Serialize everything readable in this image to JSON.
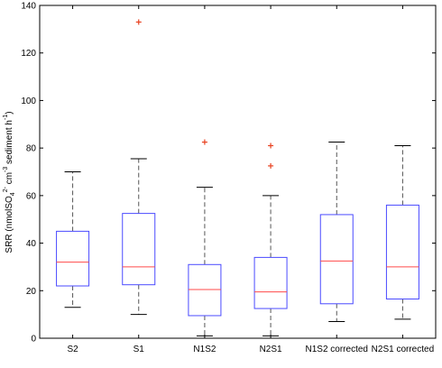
{
  "chart_data": {
    "type": "boxplot",
    "title": "",
    "xlabel": "",
    "ylabel": "SRR (nmolSO4 2- cm-3 sediment h-1)",
    "ylabel_parts": {
      "main": "SRR (nmolSO",
      "sub": "4",
      "sup1": "2-",
      "mid": " cm",
      "sup2": "-3",
      "tail": " sediment h",
      "sup3": "-1",
      "close": ")"
    },
    "ylim": [
      0,
      140
    ],
    "yticks": [
      0,
      20,
      40,
      60,
      80,
      100,
      120,
      140
    ],
    "grid": false,
    "categories": [
      "S2",
      "S1",
      "N1S2",
      "N2S1",
      "N1S2 corrected",
      "N2S1 corrected"
    ],
    "boxes": [
      {
        "category": "S2",
        "whisker_low": 13,
        "q1": 22,
        "median": 32,
        "q3": 45,
        "whisker_high": 70,
        "outliers": []
      },
      {
        "category": "S1",
        "whisker_low": 10,
        "q1": 22.5,
        "median": 30,
        "q3": 52.5,
        "whisker_high": 75.5,
        "outliers": [
          133
        ]
      },
      {
        "category": "N1S2",
        "whisker_low": 1,
        "q1": 9.5,
        "median": 20.5,
        "q3": 31,
        "whisker_high": 63.5,
        "outliers": [
          82.5
        ]
      },
      {
        "category": "N2S1",
        "whisker_low": 1,
        "q1": 12.5,
        "median": 19.5,
        "q3": 34,
        "whisker_high": 60,
        "outliers": [
          72.5,
          81
        ]
      },
      {
        "category": "N1S2 corrected",
        "whisker_low": 7,
        "q1": 14.5,
        "median": 32.5,
        "q3": 52,
        "whisker_high": 82.5,
        "outliers": []
      },
      {
        "category": "N2S1 corrected",
        "whisker_low": 8,
        "q1": 16.5,
        "median": 30,
        "q3": 56,
        "whisker_high": 81,
        "outliers": []
      }
    ],
    "colors": {
      "box": "#4a4aff",
      "median": "#ff4a4a",
      "whisker": "#555555",
      "outlier": "#e8401e",
      "axis": "#000000"
    }
  }
}
